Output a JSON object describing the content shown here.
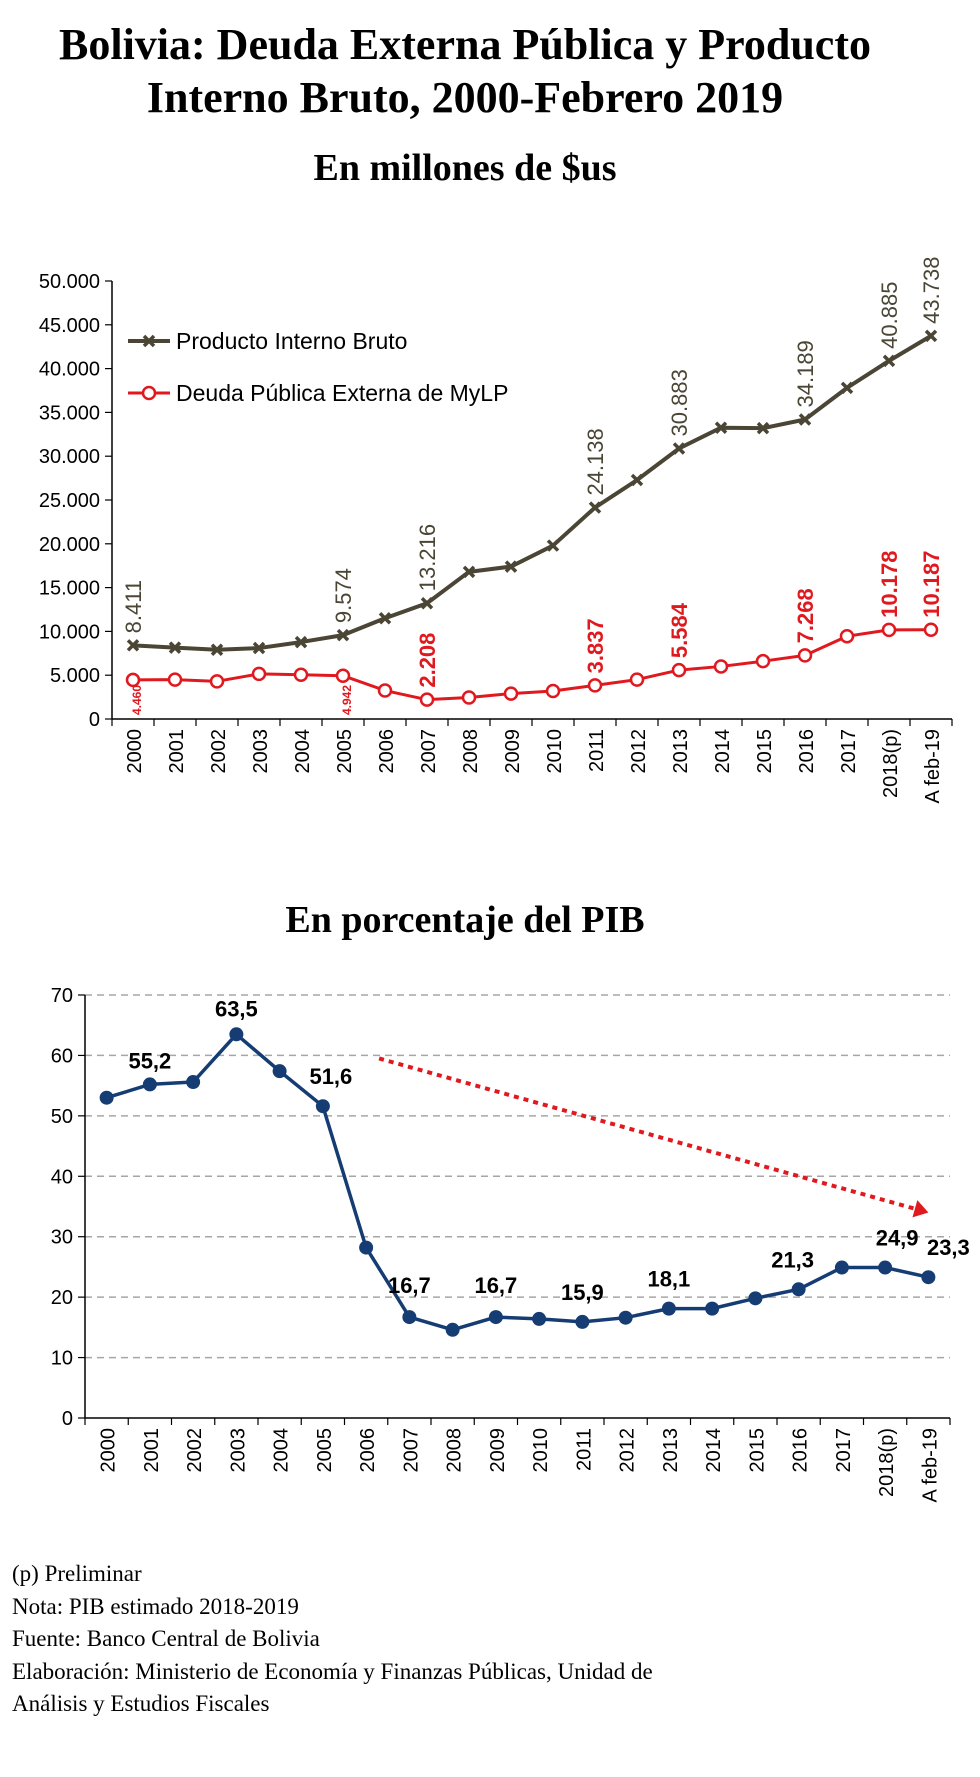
{
  "title_line1": "Bolivia: Deuda Externa Pública y Producto",
  "title_line2": "Interno Bruto, 2000-Febrero 2019",
  "chart_data": [
    {
      "type": "line",
      "title": "En millones de $us",
      "categories": [
        "2000",
        "2001",
        "2002",
        "2003",
        "2004",
        "2005",
        "2006",
        "2007",
        "2008",
        "2009",
        "2010",
        "2011",
        "2012",
        "2013",
        "2014",
        "2015",
        "2016",
        "2017",
        "2018(p)",
        "A feb-19"
      ],
      "ylim": [
        0,
        50000
      ],
      "y_ticks": [
        "0",
        "5.000",
        "10.000",
        "15.000",
        "20.000",
        "25.000",
        "30.000",
        "35.000",
        "40.000",
        "45.000",
        "50.000"
      ],
      "grid": false,
      "legend_position": "top-left",
      "series": [
        {
          "name": "Producto Interno Bruto",
          "color": "#4a4534",
          "marker": "x",
          "values": [
            8411,
            8150,
            7900,
            8100,
            8780,
            9574,
            11500,
            13216,
            16800,
            17400,
            19800,
            24138,
            27280,
            30883,
            33250,
            33200,
            34189,
            37800,
            40885,
            43738
          ],
          "data_labels": [
            {
              "index": 0,
              "text": "8.411"
            },
            {
              "index": 5,
              "text": "9.574"
            },
            {
              "index": 7,
              "text": "13.216"
            },
            {
              "index": 11,
              "text": "24.138"
            },
            {
              "index": 13,
              "text": "30.883"
            },
            {
              "index": 16,
              "text": "34.189"
            },
            {
              "index": 18,
              "text": "40.885"
            },
            {
              "index": 19,
              "text": "43.738"
            }
          ]
        },
        {
          "name": "Deuda Pública Externa de MyLP",
          "color": "#e0191f",
          "marker": "circle",
          "values": [
            4460,
            4500,
            4300,
            5150,
            5050,
            4942,
            3250,
            2208,
            2450,
            2900,
            3200,
            3837,
            4500,
            5584,
            6000,
            6600,
            7268,
            9450,
            10178,
            10187
          ],
          "data_labels": [
            {
              "index": 0,
              "text": "4.460"
            },
            {
              "index": 5,
              "text": "4.942"
            },
            {
              "index": 7,
              "text": "2.208"
            },
            {
              "index": 11,
              "text": "3.837"
            },
            {
              "index": 13,
              "text": "5.584"
            },
            {
              "index": 16,
              "text": "7.268"
            },
            {
              "index": 18,
              "text": "10.178"
            },
            {
              "index": 19,
              "text": "10.187"
            }
          ]
        }
      ]
    },
    {
      "type": "line",
      "title": "En porcentaje del PIB",
      "categories": [
        "2000",
        "2001",
        "2002",
        "2003",
        "2004",
        "2005",
        "2006",
        "2007",
        "2008",
        "2009",
        "2010",
        "2011",
        "2012",
        "2013",
        "2014",
        "2015",
        "2016",
        "2017",
        "2018(p)",
        "A feb-19"
      ],
      "ylim": [
        0,
        70
      ],
      "y_ticks": [
        "0",
        "10",
        "20",
        "30",
        "40",
        "50",
        "60",
        "70"
      ],
      "grid": true,
      "series": [
        {
          "color": "#163d73",
          "marker": "circle",
          "values": [
            53.0,
            55.2,
            55.6,
            63.5,
            57.4,
            51.6,
            28.2,
            16.7,
            14.6,
            16.7,
            16.4,
            15.9,
            16.6,
            18.1,
            18.1,
            19.8,
            21.3,
            24.9,
            24.9,
            23.3
          ],
          "data_labels": [
            {
              "index": 1,
              "text": "55,2"
            },
            {
              "index": 3,
              "text": "63,5"
            },
            {
              "index": 5,
              "text": "51,6"
            },
            {
              "index": 7,
              "text": "16,7"
            },
            {
              "index": 9,
              "text": "16,7"
            },
            {
              "index": 11,
              "text": "15,9"
            },
            {
              "index": 13,
              "text": "18,1"
            },
            {
              "index": 16,
              "text": "21,3"
            },
            {
              "index": 18,
              "text": "24,9"
            },
            {
              "index": 19,
              "text": "23,3"
            }
          ]
        }
      ],
      "trend_arrow": {
        "from_index": 6.3,
        "from_value": 59.5,
        "to_index": 19,
        "to_value": 34.0,
        "color": "#e0191f",
        "style": "dotted"
      }
    }
  ],
  "notes": [
    "(p) Preliminar",
    "Nota: PIB estimado 2018-2019",
    "Fuente: Banco Central de Bolivia",
    "Elaboración: Ministerio de Economía y Finanzas Públicas, Unidad de",
    "Análisis y Estudios Fiscales"
  ]
}
